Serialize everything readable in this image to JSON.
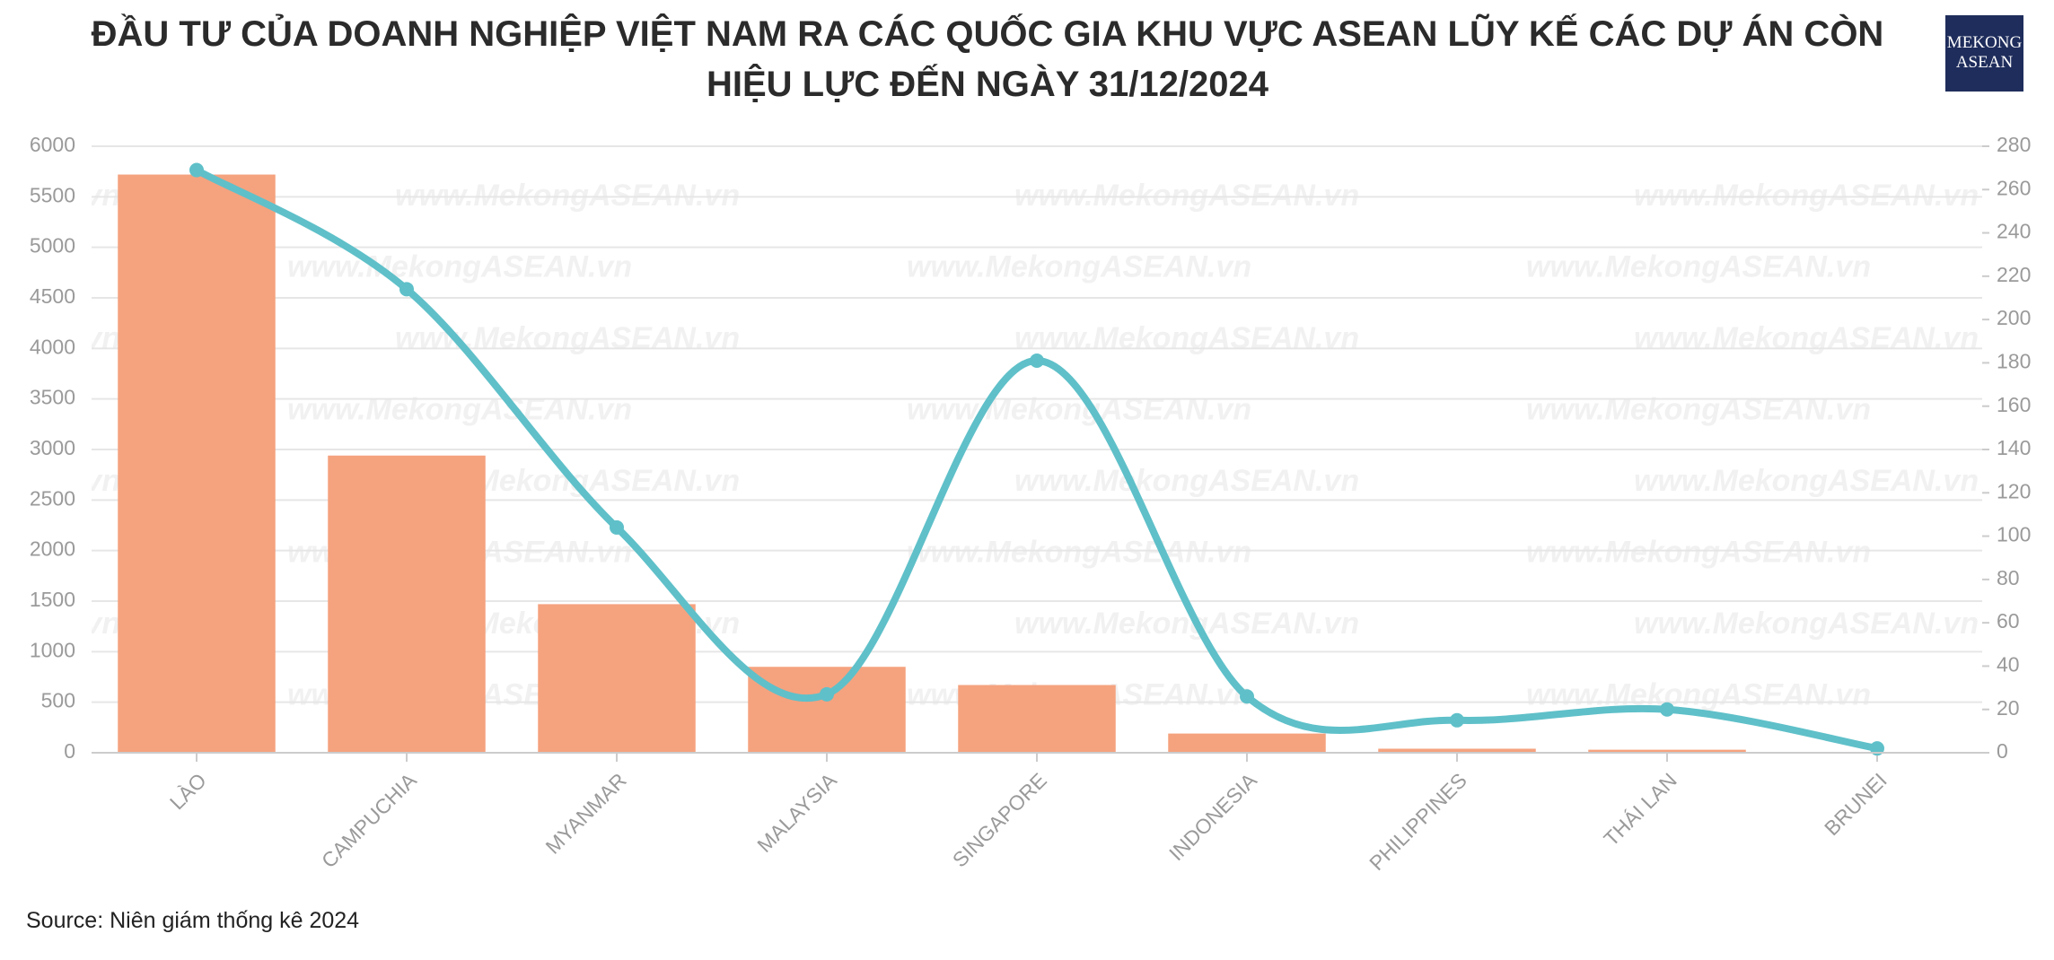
{
  "chart_data": {
    "type": "bar-line",
    "title": "ĐẦU TƯ CỦA DOANH NGHIỆP VIỆT NAM RA CÁC QUỐC GIA KHU VỰC ASEAN LŨY KẾ CÁC DỰ ÁN CÒN HIỆU LỰC ĐẾN NGÀY 31/12/2024",
    "source": "Source: Niên giám thống kê 2024",
    "logo": [
      "MEKONG",
      "ASEAN"
    ],
    "watermark": "www.MekongASEAN.vn",
    "categories": [
      "LÀO",
      "CAMPUCHIA",
      "MYANMAR",
      "MALAYSIA",
      "SINGAPORE",
      "INDONESIA",
      "PHILIPPINES",
      "THÁI LAN",
      "BRUNEI"
    ],
    "series": [
      {
        "type": "bar",
        "color": "#f5a27f",
        "values": [
          5720,
          2940,
          1470,
          850,
          670,
          190,
          40,
          30,
          3
        ]
      },
      {
        "type": "line",
        "axis": "y2",
        "color": "#5fc0c9",
        "values": [
          269,
          214,
          104,
          27,
          181,
          26,
          15,
          20,
          2
        ]
      }
    ],
    "ylim": [
      0,
      6000
    ],
    "yticks": [
      0,
      500,
      1000,
      1500,
      2000,
      2500,
      3000,
      3500,
      4000,
      4500,
      5000,
      5500,
      6000
    ],
    "y2lim": [
      0,
      280
    ],
    "y2ticks": [
      0,
      20,
      40,
      60,
      80,
      100,
      120,
      140,
      160,
      180,
      200,
      220,
      240,
      260,
      280
    ],
    "grid": true
  }
}
